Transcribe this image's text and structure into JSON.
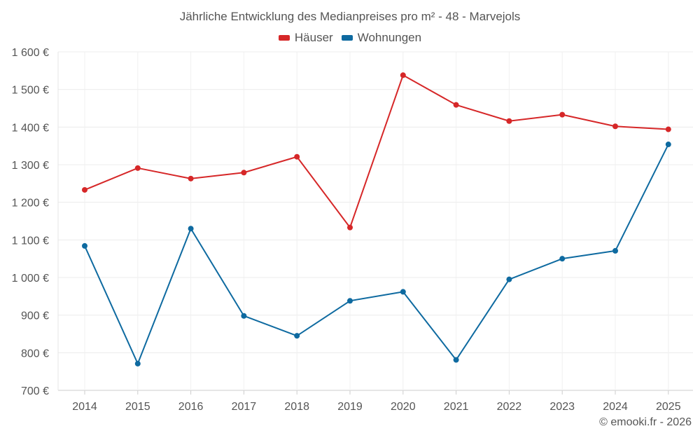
{
  "chart_data": {
    "type": "line",
    "title": "Jährliche Entwicklung des Medianpreises pro m² - 48 - Marvejols",
    "categories": [
      "2014",
      "2015",
      "2016",
      "2017",
      "2018",
      "2019",
      "2020",
      "2021",
      "2022",
      "2023",
      "2024",
      "2025"
    ],
    "series": [
      {
        "name": "Häuser",
        "color": "#d62728",
        "values": [
          1233,
          1291,
          1263,
          1279,
          1321,
          1133,
          1538,
          1459,
          1416,
          1433,
          1402,
          1394
        ]
      },
      {
        "name": "Wohnungen",
        "color": "#0e6aa0",
        "values": [
          1084,
          771,
          1130,
          898,
          845,
          938,
          962,
          781,
          995,
          1050,
          1071,
          1354
        ]
      }
    ],
    "ylim": [
      700,
      1600
    ],
    "yticks": [
      700,
      800,
      900,
      1000,
      1100,
      1200,
      1300,
      1400,
      1500,
      1600
    ],
    "ytick_labels": [
      "700 €",
      "800 €",
      "900 €",
      "1 000 €",
      "1 100 €",
      "1 200 €",
      "1 300 €",
      "1 400 €",
      "1 500 €",
      "1 600 €"
    ],
    "xlabel": "",
    "ylabel": "",
    "grid": true,
    "legend_position": "top-center"
  },
  "credit": "© emooki.fr - 2026"
}
